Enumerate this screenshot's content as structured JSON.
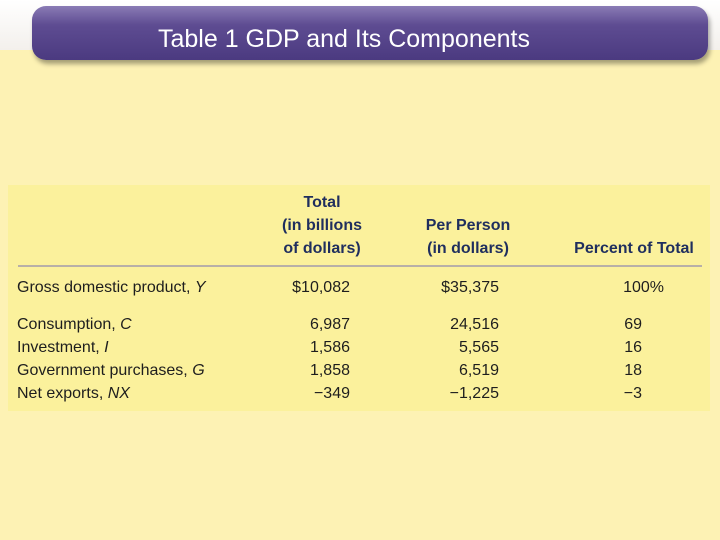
{
  "title": "Table 1 GDP and Its Components",
  "table": {
    "headers": {
      "col_total": [
        "Total",
        "(in billions",
        "of dollars)"
      ],
      "col_per_person": [
        "Per Person",
        "(in dollars)"
      ],
      "col_percent": "Percent of Total"
    },
    "rows": [
      {
        "label": "Gross domestic product, ",
        "var": "Y",
        "total": "$10,082",
        "per_person": "$35,375",
        "percent": "100%"
      },
      {
        "label": "Consumption, ",
        "var": "C",
        "total": "6,987",
        "per_person": "24,516",
        "percent": "69"
      },
      {
        "label": "Investment, ",
        "var": "I",
        "total": "1,586",
        "per_person": "5,565",
        "percent": "16"
      },
      {
        "label": "Government purchases, ",
        "var": "G",
        "total": "1,858",
        "per_person": "6,519",
        "percent": "18"
      },
      {
        "label": "Net exports, ",
        "var": "NX",
        "total": "−349",
        "per_person": "−1,225",
        "percent": "−3"
      }
    ]
  }
}
